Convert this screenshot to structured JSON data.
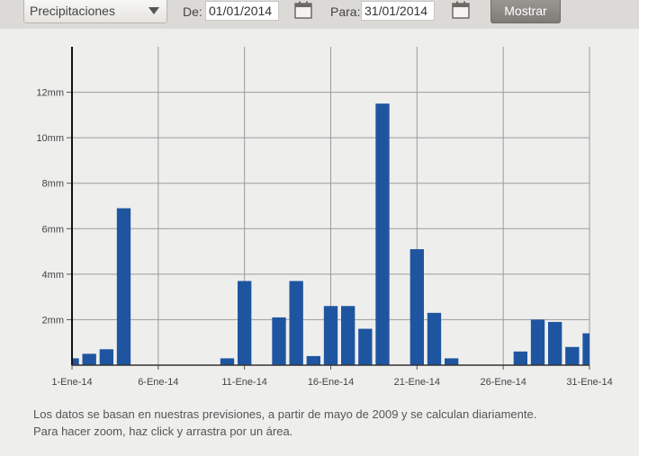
{
  "toolbar": {
    "variable_select": "Precipitaciones",
    "from_label": "De:",
    "from_value": "01/01/2014",
    "to_label": "Para:",
    "to_value": "31/01/2014",
    "submit_label": "Mostrar"
  },
  "chart_data": {
    "type": "bar",
    "categories": [
      "1",
      "2",
      "3",
      "4",
      "5",
      "6",
      "7",
      "8",
      "9",
      "10",
      "11",
      "12",
      "13",
      "14",
      "15",
      "16",
      "17",
      "18",
      "19",
      "20",
      "21",
      "22",
      "23",
      "24",
      "25",
      "26",
      "27",
      "28",
      "29",
      "30",
      "31"
    ],
    "x_tick_labels": [
      "1-Ene-14",
      "6-Ene-14",
      "11-Ene-14",
      "16-Ene-14",
      "21-Ene-14",
      "26-Ene-14",
      "31-Ene-14"
    ],
    "y_tick_labels": [
      "2mm",
      "4mm",
      "6mm",
      "8mm",
      "10mm",
      "12mm"
    ],
    "y_ticks": [
      2,
      4,
      6,
      8,
      10,
      12
    ],
    "ylim": [
      0,
      14
    ],
    "unit": "mm",
    "values": [
      0.3,
      0.5,
      0.7,
      6.9,
      0,
      0,
      0,
      0,
      0,
      0.3,
      3.7,
      0,
      2.1,
      3.7,
      0.4,
      2.6,
      2.6,
      1.6,
      11.5,
      0,
      5.1,
      2.3,
      0.3,
      0,
      0,
      0,
      0.6,
      2.0,
      1.9,
      0.8,
      1.4
    ],
    "bar_color": "#1f55a0",
    "grid": true
  },
  "footnote": {
    "line1": "Los datos se basan en nuestras previsiones, a partir de mayo de 2009 y se calculan diariamente.",
    "line2": "Para hacer zoom, haz click y arrastra por un área."
  }
}
